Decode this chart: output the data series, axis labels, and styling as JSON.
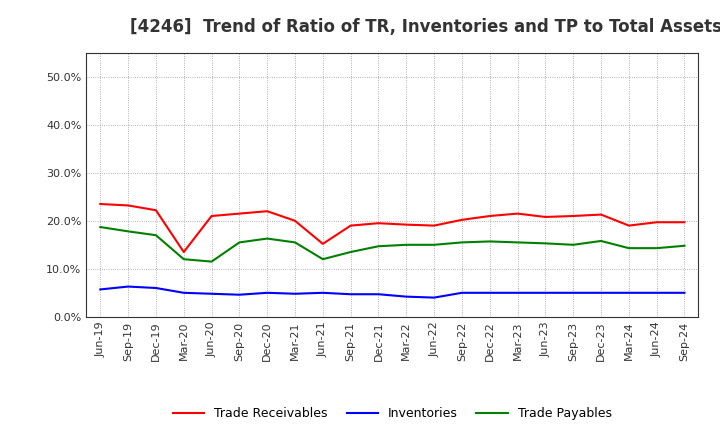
{
  "title": "[4246]  Trend of Ratio of TR, Inventories and TP to Total Assets",
  "x_labels": [
    "Jun-19",
    "Sep-19",
    "Dec-19",
    "Mar-20",
    "Jun-20",
    "Sep-20",
    "Dec-20",
    "Mar-21",
    "Jun-21",
    "Sep-21",
    "Dec-21",
    "Mar-22",
    "Jun-22",
    "Sep-22",
    "Dec-22",
    "Mar-23",
    "Jun-23",
    "Sep-23",
    "Dec-23",
    "Mar-24",
    "Jun-24",
    "Sep-24"
  ],
  "trade_receivables": [
    0.235,
    0.232,
    0.222,
    0.135,
    0.21,
    0.215,
    0.22,
    0.2,
    0.152,
    0.19,
    0.195,
    0.192,
    0.19,
    0.202,
    0.21,
    0.215,
    0.208,
    0.21,
    0.213,
    0.19,
    0.197,
    0.197
  ],
  "inventories": [
    0.057,
    0.063,
    0.06,
    0.05,
    0.048,
    0.046,
    0.05,
    0.048,
    0.05,
    0.047,
    0.047,
    0.042,
    0.04,
    0.05,
    0.05,
    0.05,
    0.05,
    0.05,
    0.05,
    0.05,
    0.05,
    0.05
  ],
  "trade_payables": [
    0.187,
    0.178,
    0.17,
    0.12,
    0.115,
    0.155,
    0.163,
    0.155,
    0.12,
    0.135,
    0.147,
    0.15,
    0.15,
    0.155,
    0.157,
    0.155,
    0.153,
    0.15,
    0.158,
    0.143,
    0.143,
    0.148
  ],
  "tr_color": "#ff0000",
  "inv_color": "#0000ff",
  "tp_color": "#008000",
  "ylim": [
    0.0,
    0.55
  ],
  "yticks": [
    0.0,
    0.1,
    0.2,
    0.3,
    0.4,
    0.5
  ],
  "legend_labels": [
    "Trade Receivables",
    "Inventories",
    "Trade Payables"
  ],
  "background_color": "#ffffff",
  "grid_color": "#aaaaaa",
  "title_fontsize": 12,
  "title_color": "#333333",
  "tick_fontsize": 8,
  "line_width": 1.5,
  "legend_fontsize": 9
}
